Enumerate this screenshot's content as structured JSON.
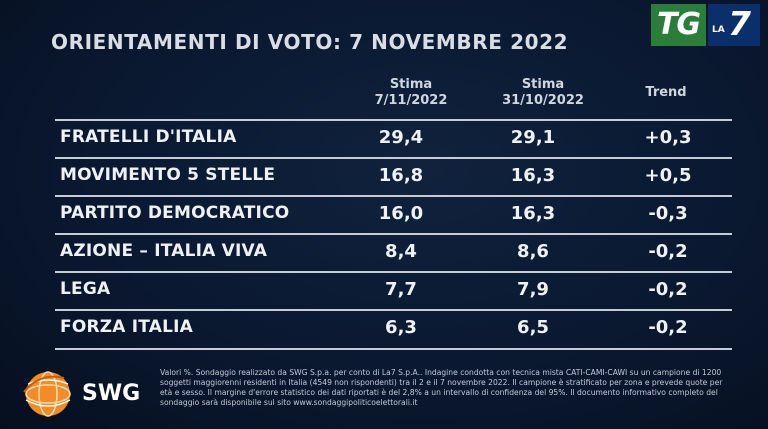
{
  "title": "ORIENTAMENTI DI VOTO: 7 NOVEMBRE 2022",
  "logo": {
    "tg": "TG",
    "la": "LA",
    "seven": "7"
  },
  "columns": {
    "col1_line1": "Stima",
    "col1_line2": "7/11/2022",
    "col2_line1": "Stima",
    "col2_line2": "31/10/2022",
    "trend": "Trend"
  },
  "rows": [
    {
      "party": "FRATELLI D'ITALIA",
      "stima1": "29,4",
      "stima2": "29,1",
      "trend": "+0,3"
    },
    {
      "party": "MOVIMENTO 5 STELLE",
      "stima1": "16,8",
      "stima2": "16,3",
      "trend": "+0,5"
    },
    {
      "party": "PARTITO DEMOCRATICO",
      "stima1": "16,0",
      "stima2": "16,3",
      "trend": "-0,3"
    },
    {
      "party": "AZIONE – ITALIA VIVA",
      "stima1": "8,4",
      "stima2": "8,6",
      "trend": "-0,2"
    },
    {
      "party": "LEGA",
      "stima1": "7,7",
      "stima2": "7,9",
      "trend": "-0,2"
    },
    {
      "party": "FORZA ITALIA",
      "stima1": "6,3",
      "stima2": "6,5",
      "trend": "-0,2"
    }
  ],
  "swg": {
    "name": "SWG",
    "icon": "swg-globe-icon"
  },
  "footnote": "Valori %. Sondaggio realizzato da SWG S.p.a. per conto di La7 S.p.A.. Indagine condotta con tecnica mista CATI-CAMI-CAWI su un campione di 1200 soggetti maggiorenni residenti in Italia (4549 non rispondenti) tra il 2 e il 7 novembre 2022. Il campione è stratificato per zona e prevede quote per età e sesso. Il margine d'errore statistico dei dati riportati è del 2,8% a un intervallo di confidenza del 95%. Il documento informativo completo del sondaggio sarà disponibile sul sito www.sondaggipoliticoelettorali.it",
  "colors": {
    "background": "#0a1830",
    "tg_green": "#2b7d3a",
    "la7_blue": "#0b2f6b",
    "swg_orange": "#f28c28"
  }
}
